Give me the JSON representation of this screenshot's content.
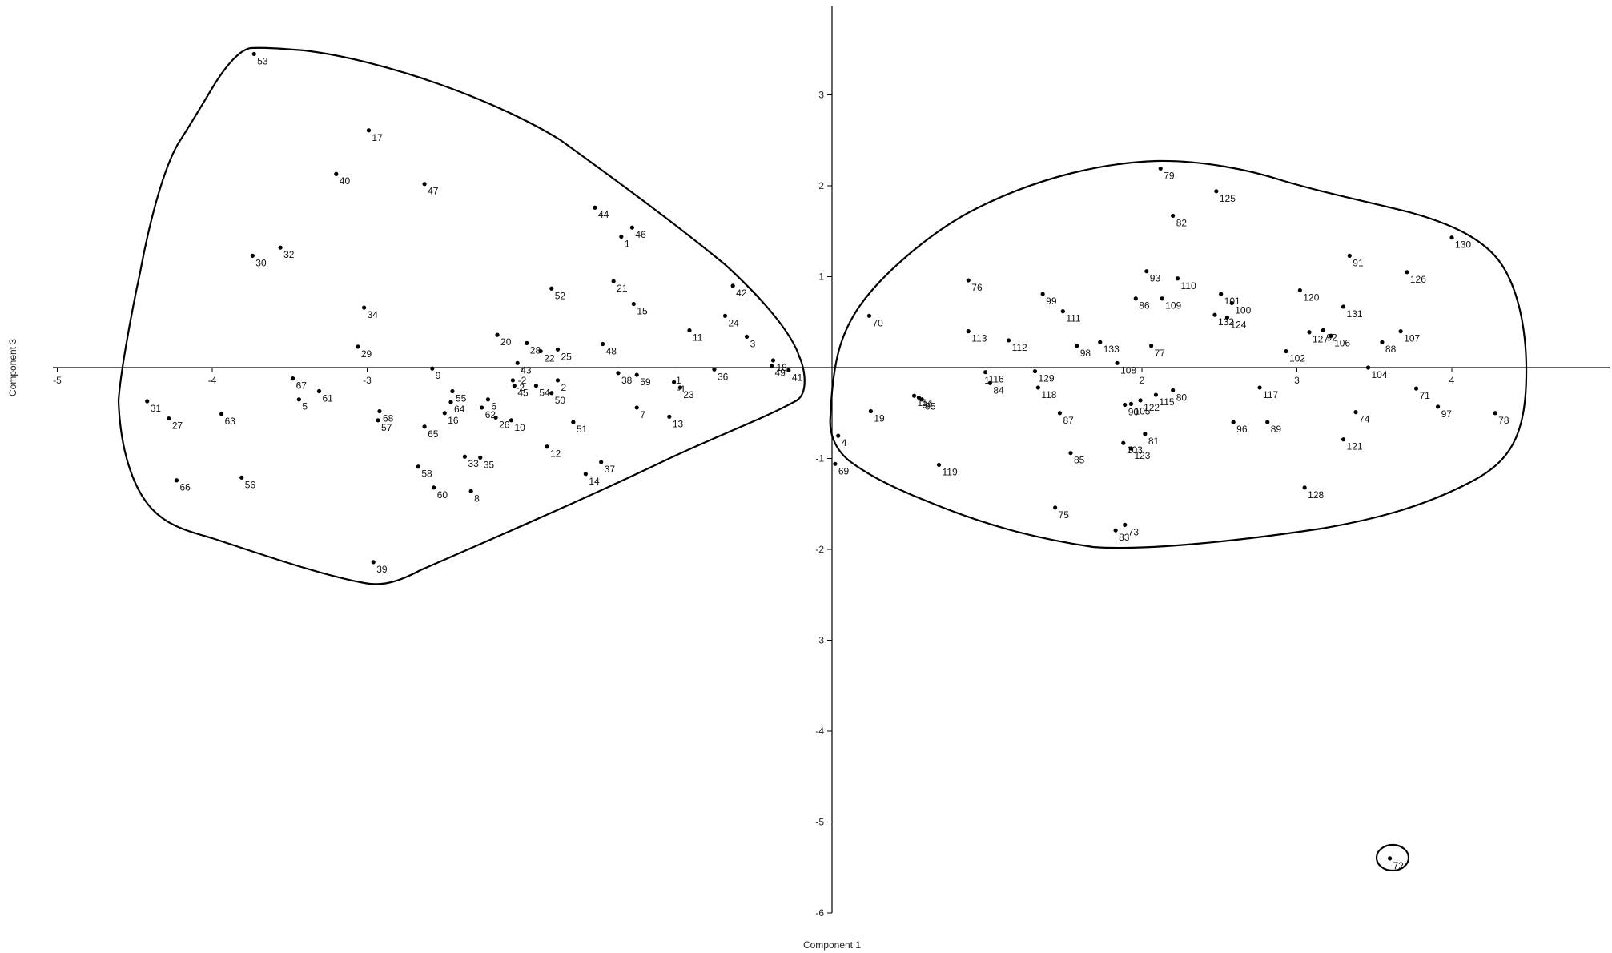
{
  "chart_data": {
    "type": "scatter",
    "xlabel": "Component 1",
    "ylabel": "Component 3",
    "xlim": [
      -5,
      5
    ],
    "ylim": [
      -6,
      4
    ],
    "xticks": [
      -5,
      -4,
      -3,
      -2,
      -1,
      1,
      2,
      3,
      4
    ],
    "yticks": [
      -6,
      -5,
      -4,
      -3,
      -2,
      -1,
      1,
      2,
      3
    ],
    "grid": false,
    "points": [
      {
        "label": "53",
        "x": -3.73,
        "y": 3.45
      },
      {
        "label": "17",
        "x": -2.99,
        "y": 2.61
      },
      {
        "label": "40",
        "x": -3.2,
        "y": 2.13
      },
      {
        "label": "47",
        "x": -2.63,
        "y": 2.02
      },
      {
        "label": "30",
        "x": -3.74,
        "y": 1.23
      },
      {
        "label": "32",
        "x": -3.56,
        "y": 1.32
      },
      {
        "label": "34",
        "x": -3.02,
        "y": 0.66
      },
      {
        "label": "29",
        "x": -3.06,
        "y": 0.23
      },
      {
        "label": "44",
        "x": -1.53,
        "y": 1.76
      },
      {
        "label": "46",
        "x": -1.29,
        "y": 1.54
      },
      {
        "label": "1",
        "x": -1.36,
        "y": 1.44
      },
      {
        "label": "52",
        "x": -1.81,
        "y": 0.87
      },
      {
        "label": "21",
        "x": -1.41,
        "y": 0.95
      },
      {
        "label": "15",
        "x": -1.28,
        "y": 0.7
      },
      {
        "label": "42",
        "x": -0.64,
        "y": 0.9
      },
      {
        "label": "24",
        "x": -0.69,
        "y": 0.57
      },
      {
        "label": "11",
        "x": -0.92,
        "y": 0.41
      },
      {
        "label": "3",
        "x": -0.55,
        "y": 0.34
      },
      {
        "label": "48",
        "x": -1.48,
        "y": 0.26
      },
      {
        "label": "20",
        "x": -2.16,
        "y": 0.36
      },
      {
        "label": "28",
        "x": -1.97,
        "y": 0.27
      },
      {
        "label": "22",
        "x": -1.88,
        "y": 0.18
      },
      {
        "label": "25",
        "x": -1.77,
        "y": 0.2
      },
      {
        "label": "43",
        "x": -2.03,
        "y": 0.05
      },
      {
        "label": "18",
        "x": -0.38,
        "y": 0.08
      },
      {
        "label": "49",
        "x": -0.39,
        "y": 0.02
      },
      {
        "label": "41",
        "x": -0.28,
        "y": -0.03
      },
      {
        "label": "9",
        "x": -2.58,
        "y": -0.01
      },
      {
        "label": "38",
        "x": -1.38,
        "y": -0.06
      },
      {
        "label": "59",
        "x": -1.26,
        "y": -0.08
      },
      {
        "label": "36",
        "x": -0.76,
        "y": -0.02
      },
      {
        "label": "-1",
        "x": -1.02,
        "y": -0.16
      },
      {
        "label": "23",
        "x": -0.98,
        "y": -0.22
      },
      {
        "label": "-2",
        "x": -2.06,
        "y": -0.14
      },
      {
        "label": "2",
        "x": -1.77,
        "y": -0.14
      },
      {
        "label": "45",
        "x": -2.05,
        "y": -0.2
      },
      {
        "label": "54",
        "x": -1.91,
        "y": -0.2
      },
      {
        "label": "50",
        "x": -1.81,
        "y": -0.28
      },
      {
        "label": "67",
        "x": -3.48,
        "y": -0.12
      },
      {
        "label": "61",
        "x": -3.31,
        "y": -0.26
      },
      {
        "label": "5",
        "x": -3.44,
        "y": -0.35
      },
      {
        "label": "55",
        "x": -2.45,
        "y": -0.26
      },
      {
        "label": "64",
        "x": -2.46,
        "y": -0.38
      },
      {
        "label": "6",
        "x": -2.22,
        "y": -0.35
      },
      {
        "label": "62",
        "x": -2.26,
        "y": -0.44
      },
      {
        "label": "16",
        "x": -2.5,
        "y": -0.5
      },
      {
        "label": "26",
        "x": -2.17,
        "y": -0.55
      },
      {
        "label": "10",
        "x": -2.07,
        "y": -0.58
      },
      {
        "label": "31",
        "x": -4.42,
        "y": -0.37
      },
      {
        "label": "27",
        "x": -4.28,
        "y": -0.56
      },
      {
        "label": "63",
        "x": -3.94,
        "y": -0.51
      },
      {
        "label": "68",
        "x": -2.92,
        "y": -0.48
      },
      {
        "label": "57",
        "x": -2.93,
        "y": -0.58
      },
      {
        "label": "65",
        "x": -2.63,
        "y": -0.65
      },
      {
        "label": "7",
        "x": -1.26,
        "y": -0.44
      },
      {
        "label": "13",
        "x": -1.05,
        "y": -0.54
      },
      {
        "label": "51",
        "x": -1.67,
        "y": -0.6
      },
      {
        "label": "12",
        "x": -1.84,
        "y": -0.87
      },
      {
        "label": "33",
        "x": -2.37,
        "y": -0.98
      },
      {
        "label": "35",
        "x": -2.27,
        "y": -0.99
      },
      {
        "label": "37",
        "x": -1.49,
        "y": -1.04
      },
      {
        "label": "14",
        "x": -1.59,
        "y": -1.17
      },
      {
        "label": "58",
        "x": -2.67,
        "y": -1.09
      },
      {
        "label": "60",
        "x": -2.57,
        "y": -1.32
      },
      {
        "label": "8",
        "x": -2.33,
        "y": -1.36
      },
      {
        "label": "66",
        "x": -4.23,
        "y": -1.24
      },
      {
        "label": "56",
        "x": -3.81,
        "y": -1.21
      },
      {
        "label": "39",
        "x": -2.96,
        "y": -2.14
      },
      {
        "label": "79",
        "x": 2.12,
        "y": 2.19
      },
      {
        "label": "125",
        "x": 2.48,
        "y": 1.94
      },
      {
        "label": "82",
        "x": 2.2,
        "y": 1.67
      },
      {
        "label": "130",
        "x": 4.0,
        "y": 1.43
      },
      {
        "label": "91",
        "x": 3.34,
        "y": 1.23
      },
      {
        "label": "126",
        "x": 3.71,
        "y": 1.05
      },
      {
        "label": "93",
        "x": 2.03,
        "y": 1.06
      },
      {
        "label": "110",
        "x": 2.23,
        "y": 0.98
      },
      {
        "label": "76",
        "x": 0.88,
        "y": 0.96
      },
      {
        "label": "120",
        "x": 3.02,
        "y": 0.85
      },
      {
        "label": "99",
        "x": 1.36,
        "y": 0.81
      },
      {
        "label": "101",
        "x": 2.51,
        "y": 0.81
      },
      {
        "label": "86",
        "x": 1.96,
        "y": 0.76
      },
      {
        "label": "109",
        "x": 2.13,
        "y": 0.76
      },
      {
        "label": "100",
        "x": 2.58,
        "y": 0.71
      },
      {
        "label": "131",
        "x": 3.3,
        "y": 0.67
      },
      {
        "label": "111",
        "x": 1.49,
        "y": 0.62
      },
      {
        "label": "132",
        "x": 2.47,
        "y": 0.58
      },
      {
        "label": "124",
        "x": 2.55,
        "y": 0.55
      },
      {
        "label": "70",
        "x": 0.24,
        "y": 0.57
      },
      {
        "label": "107",
        "x": 3.67,
        "y": 0.4
      },
      {
        "label": "127",
        "x": 3.08,
        "y": 0.39
      },
      {
        "label": "92",
        "x": 3.17,
        "y": 0.41
      },
      {
        "label": "106",
        "x": 3.22,
        "y": 0.35
      },
      {
        "label": "88",
        "x": 3.55,
        "y": 0.28
      },
      {
        "label": "113",
        "x": 0.88,
        "y": 0.4
      },
      {
        "label": "112",
        "x": 1.14,
        "y": 0.3
      },
      {
        "label": "133",
        "x": 1.73,
        "y": 0.28
      },
      {
        "label": "98",
        "x": 1.58,
        "y": 0.24
      },
      {
        "label": "77",
        "x": 2.06,
        "y": 0.24
      },
      {
        "label": "102",
        "x": 2.93,
        "y": 0.18
      },
      {
        "label": "108",
        "x": 1.84,
        "y": 0.05
      },
      {
        "label": "104",
        "x": 3.46,
        "y": 0.0
      },
      {
        "label": "116",
        "x": 0.99,
        "y": -0.05
      },
      {
        "label": "129",
        "x": 1.31,
        "y": -0.04
      },
      {
        "label": "84",
        "x": 1.02,
        "y": -0.17
      },
      {
        "label": "118",
        "x": 1.33,
        "y": -0.22
      },
      {
        "label": "117",
        "x": 2.76,
        "y": -0.22
      },
      {
        "label": "71",
        "x": 3.77,
        "y": -0.23
      },
      {
        "label": "115",
        "x": 2.09,
        "y": -0.3
      },
      {
        "label": "80",
        "x": 2.2,
        "y": -0.25
      },
      {
        "label": "122",
        "x": 1.99,
        "y": -0.36
      },
      {
        "label": "105",
        "x": 1.93,
        "y": -0.4
      },
      {
        "label": "90",
        "x": 1.89,
        "y": -0.41
      },
      {
        "label": "97",
        "x": 3.91,
        "y": -0.43
      },
      {
        "label": "78",
        "x": 4.28,
        "y": -0.5
      },
      {
        "label": "74",
        "x": 3.38,
        "y": -0.49
      },
      {
        "label": "87",
        "x": 1.47,
        "y": -0.5
      },
      {
        "label": "96",
        "x": 2.59,
        "y": -0.6
      },
      {
        "label": "89",
        "x": 2.81,
        "y": -0.6
      },
      {
        "label": "81",
        "x": 2.02,
        "y": -0.73
      },
      {
        "label": "121",
        "x": 3.3,
        "y": -0.79
      },
      {
        "label": "103",
        "x": 1.88,
        "y": -0.83
      },
      {
        "label": "123",
        "x": 1.93,
        "y": -0.89
      },
      {
        "label": "85",
        "x": 1.54,
        "y": -0.94
      },
      {
        "label": "128",
        "x": 3.05,
        "y": -1.32
      },
      {
        "label": "75",
        "x": 1.44,
        "y": -1.54
      },
      {
        "label": "73",
        "x": 1.89,
        "y": -1.73
      },
      {
        "label": "83",
        "x": 1.83,
        "y": -1.79
      },
      {
        "label": "114",
        "x": 0.53,
        "y": -0.31
      },
      {
        "label": "94",
        "x": 0.56,
        "y": -0.33
      },
      {
        "label": "95",
        "x": 0.58,
        "y": -0.35
      },
      {
        "label": "19",
        "x": 0.25,
        "y": -0.48
      },
      {
        "label": "4",
        "x": 0.04,
        "y": -0.75
      },
      {
        "label": "69",
        "x": 0.02,
        "y": -1.06
      },
      {
        "label": "119",
        "x": 0.69,
        "y": -1.07
      },
      {
        "label": "72",
        "x": 3.6,
        "y": -5.4
      }
    ],
    "enclosures": [
      {
        "name": "left-group-outline"
      },
      {
        "name": "right-group-outline"
      },
      {
        "name": "outlier-72-outline"
      }
    ]
  }
}
